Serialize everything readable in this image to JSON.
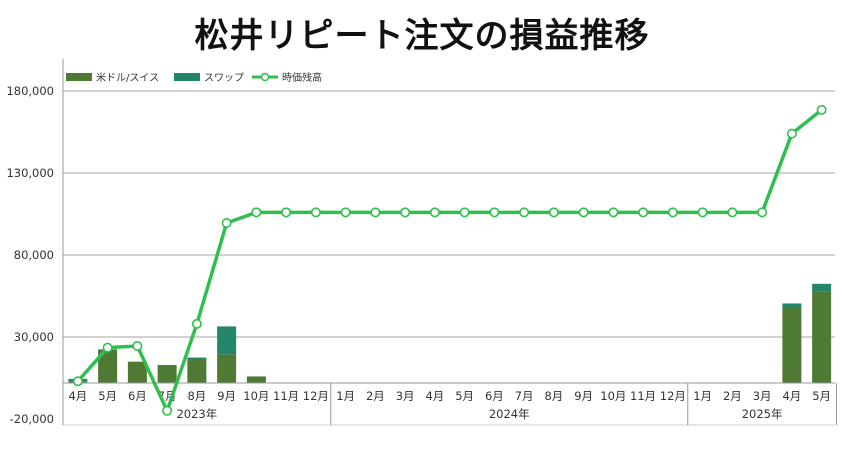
{
  "chart_data": {
    "type": "bar",
    "title": "松井リピート注文の損益推移",
    "categories": [
      "4月",
      "5月",
      "6月",
      "7月",
      "8月",
      "9月",
      "10月",
      "11月",
      "12月",
      "1月",
      "2月",
      "3月",
      "4月",
      "5月",
      "6月",
      "7月",
      "8月",
      "9月",
      "10月",
      "11月",
      "12月",
      "1月",
      "2月",
      "3月",
      "4月",
      "5月"
    ],
    "year_groups": [
      {
        "label": "2023年",
        "count": 9
      },
      {
        "label": "2024年",
        "count": 12
      },
      {
        "label": "2025年",
        "count": 5
      }
    ],
    "series": [
      {
        "name": "米ドル/スイス",
        "type": "bar",
        "stack": true,
        "color": "#4e7a33",
        "values": [
          1000,
          20500,
          13000,
          11000,
          14000,
          17500,
          4000,
          0,
          0,
          0,
          0,
          0,
          0,
          0,
          0,
          0,
          0,
          0,
          0,
          0,
          0,
          0,
          0,
          0,
          46000,
          56000
        ]
      },
      {
        "name": "スワップ",
        "type": "bar",
        "stack": true,
        "color": "#23856a",
        "values": [
          1500,
          0,
          0,
          0,
          1500,
          17000,
          0,
          0,
          0,
          0,
          0,
          0,
          0,
          0,
          0,
          0,
          0,
          0,
          0,
          0,
          0,
          0,
          0,
          0,
          2500,
          4500
        ]
      },
      {
        "name": "時価残高",
        "type": "line",
        "color": "#2fbf4f",
        "values": [
          3000,
          23500,
          24500,
          -15000,
          38000,
          99500,
          106000,
          106000,
          106000,
          106000,
          106000,
          106000,
          106000,
          106000,
          106000,
          106000,
          106000,
          106000,
          106000,
          106000,
          106000,
          106000,
          106000,
          106000,
          154000,
          168500
        ]
      }
    ],
    "y_ticks": [
      "180,000",
      "130,000",
      "80,000",
      "30,000",
      "-20,000"
    ],
    "y_tick_values": [
      180000,
      130000,
      80000,
      30000,
      -20000
    ],
    "y_tick_colors": [
      "#333333",
      "#333333",
      "#333333",
      "#333333",
      "#e00000"
    ],
    "ylim": [
      -20000,
      200000
    ],
    "grid": true,
    "legend_position": "top-left"
  }
}
